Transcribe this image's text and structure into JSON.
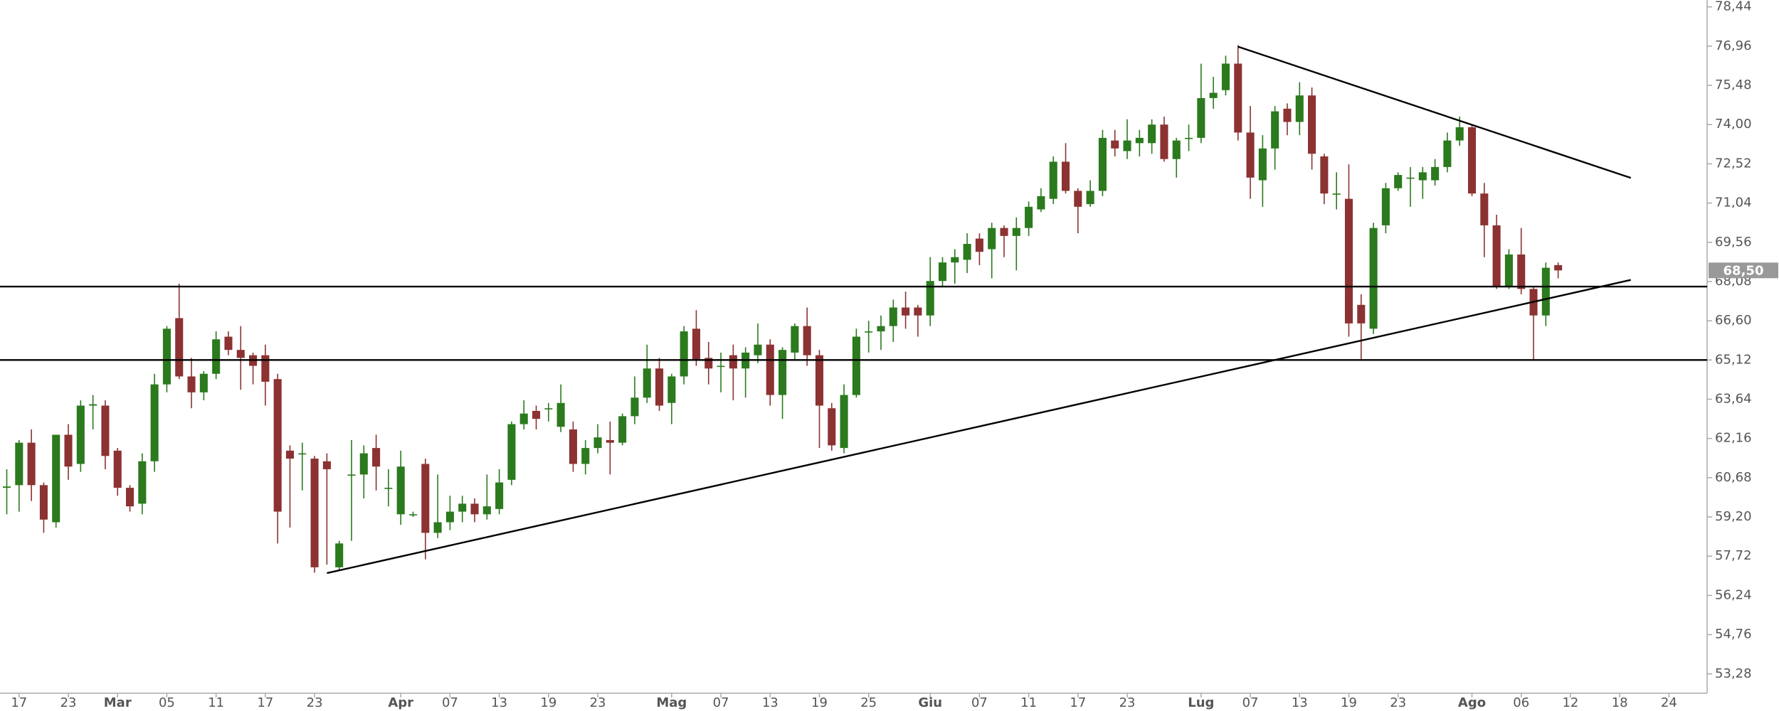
{
  "chart_data": {
    "type": "candlestick",
    "up_color": "#2b7a1e",
    "down_color": "#8c3232",
    "line_color": "#000000",
    "open": [
      60.3,
      60.4,
      62.0,
      60.4,
      59.0,
      62.3,
      61.2,
      63.4,
      63.4,
      61.7,
      60.3,
      59.7,
      61.3,
      64.2,
      66.7,
      64.5,
      63.9,
      64.6,
      66.0,
      65.5,
      65.3,
      65.3,
      64.4,
      61.7,
      61.6,
      61.4,
      61.3,
      57.3,
      60.8,
      60.8,
      61.8,
      60.3,
      59.3,
      59.3,
      61.2,
      58.6,
      59.0,
      59.4,
      59.7,
      59.3,
      59.5,
      60.6,
      62.7,
      63.2,
      63.3,
      62.6,
      62.5,
      61.2,
      61.8,
      62.1,
      62.0,
      63.0,
      63.7,
      64.8,
      63.5,
      64.5,
      66.3,
      65.2,
      64.9,
      65.3,
      64.8,
      65.3,
      65.7,
      63.8,
      65.4,
      66.4,
      65.3,
      63.3,
      61.8,
      63.8,
      66.2,
      66.2,
      66.4,
      67.1,
      67.1,
      66.8,
      68.1,
      68.8,
      68.9,
      69.7,
      69.3,
      70.1,
      69.8,
      70.1,
      70.8,
      71.2,
      72.6,
      71.5,
      71.0,
      71.5,
      73.4,
      73.0,
      73.3,
      73.3,
      74.0,
      72.7,
      73.5,
      73.5,
      75.0,
      75.3,
      76.3,
      73.7,
      71.9,
      73.1,
      74.6,
      74.1,
      75.1,
      72.8,
      71.4,
      71.2,
      67.2,
      66.3,
      70.2,
      71.6,
      72.0,
      71.9,
      71.9,
      72.4,
      73.4,
      73.9,
      71.4,
      70.2,
      67.9,
      69.1,
      67.8,
      66.8,
      68.7
    ],
    "high": [
      61.0,
      62.1,
      62.5,
      60.5,
      62.3,
      62.7,
      63.6,
      63.8,
      63.6,
      61.8,
      60.4,
      61.6,
      64.6,
      66.4,
      68.0,
      65.2,
      64.7,
      66.2,
      66.2,
      66.4,
      65.4,
      65.7,
      64.6,
      61.9,
      62.0,
      61.5,
      61.6,
      58.3,
      62.1,
      61.9,
      62.3,
      61.0,
      61.7,
      59.4,
      61.4,
      60.8,
      60.0,
      60.0,
      59.9,
      60.8,
      61.0,
      62.8,
      63.6,
      63.4,
      63.5,
      64.2,
      62.8,
      62.1,
      62.7,
      62.8,
      63.1,
      64.5,
      65.7,
      65.2,
      64.6,
      66.4,
      67.0,
      65.8,
      65.4,
      65.7,
      65.6,
      66.5,
      65.9,
      65.6,
      66.5,
      67.1,
      65.5,
      63.5,
      64.2,
      66.3,
      66.6,
      66.8,
      67.4,
      67.7,
      67.2,
      69.0,
      69.0,
      69.3,
      69.9,
      69.9,
      70.3,
      70.2,
      70.5,
      71.1,
      71.6,
      72.8,
      73.3,
      71.6,
      71.9,
      73.8,
      73.8,
      74.2,
      73.8,
      74.2,
      74.3,
      73.5,
      74.0,
      76.3,
      75.8,
      76.6,
      77.0,
      74.7,
      73.6,
      74.7,
      74.8,
      75.6,
      75.4,
      72.9,
      72.2,
      72.5,
      67.6,
      70.3,
      71.8,
      72.2,
      72.4,
      72.4,
      72.7,
      73.7,
      74.3,
      74.0,
      71.8,
      70.6,
      69.3,
      70.1,
      67.9,
      68.8,
      68.8
    ],
    "low": [
      59.3,
      59.4,
      59.8,
      58.6,
      58.8,
      60.6,
      60.9,
      62.5,
      61.0,
      60.0,
      59.4,
      59.3,
      60.9,
      63.9,
      64.4,
      63.3,
      63.6,
      64.4,
      65.3,
      64.0,
      64.2,
      63.4,
      58.2,
      58.8,
      60.2,
      57.1,
      57.4,
      57.2,
      58.3,
      59.9,
      60.2,
      59.6,
      58.9,
      59.2,
      57.6,
      58.4,
      58.7,
      59.0,
      59.0,
      59.1,
      59.3,
      60.4,
      62.5,
      62.5,
      62.8,
      62.4,
      60.9,
      60.8,
      61.6,
      60.8,
      61.9,
      62.7,
      63.5,
      63.2,
      62.7,
      64.2,
      64.9,
      64.2,
      63.9,
      63.6,
      63.7,
      65.0,
      63.4,
      62.9,
      65.1,
      64.9,
      61.8,
      61.7,
      61.6,
      63.7,
      65.4,
      65.5,
      65.8,
      66.3,
      66.0,
      66.4,
      67.9,
      68.0,
      68.4,
      68.7,
      68.2,
      69.0,
      68.5,
      69.8,
      70.7,
      71.0,
      71.4,
      69.9,
      70.9,
      71.3,
      72.8,
      72.7,
      72.8,
      72.9,
      72.6,
      72.0,
      73.0,
      73.3,
      74.6,
      75.1,
      73.4,
      71.2,
      70.9,
      72.3,
      73.6,
      73.6,
      72.3,
      71.0,
      70.8,
      66.0,
      65.1,
      66.1,
      69.9,
      71.5,
      70.9,
      71.2,
      71.7,
      72.2,
      73.2,
      71.3,
      69.0,
      67.8,
      67.8,
      67.6,
      65.1,
      66.4,
      68.2
    ],
    "close": [
      60.35,
      62.0,
      60.4,
      59.1,
      62.3,
      61.1,
      63.4,
      63.45,
      61.5,
      60.3,
      59.6,
      61.3,
      64.2,
      66.3,
      64.5,
      63.9,
      64.6,
      65.9,
      65.5,
      65.2,
      64.9,
      64.3,
      59.4,
      61.4,
      61.6,
      57.3,
      61.0,
      58.2,
      60.8,
      61.6,
      61.1,
      60.3,
      61.1,
      59.3,
      58.6,
      59.0,
      59.4,
      59.7,
      59.3,
      59.6,
      60.5,
      62.7,
      63.1,
      62.9,
      63.3,
      63.5,
      61.2,
      61.8,
      62.2,
      62.0,
      63.0,
      63.7,
      64.8,
      63.4,
      64.5,
      66.2,
      65.1,
      64.8,
      64.9,
      64.8,
      65.4,
      65.7,
      63.8,
      65.5,
      66.4,
      65.3,
      63.4,
      61.9,
      63.8,
      66.0,
      66.2,
      66.4,
      67.1,
      66.8,
      66.8,
      68.1,
      68.8,
      69.0,
      69.5,
      69.2,
      70.1,
      69.8,
      70.1,
      70.9,
      71.3,
      72.6,
      71.5,
      70.9,
      71.5,
      73.5,
      73.1,
      73.4,
      73.5,
      74.0,
      72.7,
      73.4,
      73.5,
      75.0,
      75.2,
      76.3,
      73.7,
      72.0,
      73.1,
      74.5,
      74.1,
      75.1,
      72.9,
      71.4,
      71.4,
      66.5,
      66.5,
      70.1,
      71.6,
      72.1,
      72.0,
      72.2,
      72.4,
      73.4,
      73.9,
      71.4,
      70.2,
      67.9,
      69.1,
      67.8,
      66.8,
      68.6,
      68.5
    ],
    "xlim": [
      -0.55,
      138.1
    ],
    "xticks": [
      {
        "value": 1,
        "label": "17"
      },
      {
        "value": 5,
        "label": "23"
      },
      {
        "value": 9,
        "label": "Mar"
      },
      {
        "value": 13,
        "label": "05"
      },
      {
        "value": 17,
        "label": "11"
      },
      {
        "value": 21,
        "label": "17"
      },
      {
        "value": 25,
        "label": "23"
      },
      {
        "value": 32,
        "label": "Apr"
      },
      {
        "value": 36,
        "label": "07"
      },
      {
        "value": 40,
        "label": "13"
      },
      {
        "value": 44,
        "label": "19"
      },
      {
        "value": 48,
        "label": "23"
      },
      {
        "value": 54,
        "label": "Mag"
      },
      {
        "value": 58,
        "label": "07"
      },
      {
        "value": 62,
        "label": "13"
      },
      {
        "value": 66,
        "label": "19"
      },
      {
        "value": 70,
        "label": "25"
      },
      {
        "value": 75,
        "label": "Giu"
      },
      {
        "value": 79,
        "label": "07"
      },
      {
        "value": 83,
        "label": "11"
      },
      {
        "value": 87,
        "label": "17"
      },
      {
        "value": 91,
        "label": "23"
      },
      {
        "value": 97,
        "label": "Lug"
      },
      {
        "value": 101,
        "label": "07"
      },
      {
        "value": 105,
        "label": "13"
      },
      {
        "value": 109,
        "label": "19"
      },
      {
        "value": 113,
        "label": "23"
      },
      {
        "value": 119,
        "label": "Ago"
      },
      {
        "value": 123,
        "label": "06"
      },
      {
        "value": 127,
        "label": "12"
      },
      {
        "value": 131,
        "label": "18"
      },
      {
        "value": 135,
        "label": "24"
      }
    ],
    "ylim": [
      52.55,
      78.7
    ],
    "yticks": [
      {
        "value": 78.44,
        "label": "78,44"
      },
      {
        "value": 76.96,
        "label": "76,96"
      },
      {
        "value": 75.48,
        "label": "75,48"
      },
      {
        "value": 74.0,
        "label": "74,00"
      },
      {
        "value": 72.52,
        "label": "72,52"
      },
      {
        "value": 71.04,
        "label": "71,04"
      },
      {
        "value": 69.56,
        "label": "69,56"
      },
      {
        "value": 68.08,
        "label": "68,08"
      },
      {
        "value": 66.6,
        "label": "66,60"
      },
      {
        "value": 65.12,
        "label": "65,12"
      },
      {
        "value": 63.64,
        "label": "63,64"
      },
      {
        "value": 62.16,
        "label": "62,16"
      },
      {
        "value": 60.68,
        "label": "60,68"
      },
      {
        "value": 59.2,
        "label": "59,20"
      },
      {
        "value": 57.72,
        "label": "57,72"
      },
      {
        "value": 56.24,
        "label": "56,24"
      },
      {
        "value": 54.76,
        "label": "54,76"
      },
      {
        "value": 53.28,
        "label": "53,28"
      }
    ],
    "hlines": [
      67.89,
      65.12
    ],
    "trendlines": [
      {
        "x": [
          26.0,
          131.9
        ],
        "y": [
          57.08,
          68.14
        ]
      },
      {
        "x": [
          100.0,
          131.9
        ],
        "y": [
          76.94,
          71.99
        ]
      }
    ],
    "last_price": {
      "value": 68.5,
      "label": "68,50"
    }
  }
}
